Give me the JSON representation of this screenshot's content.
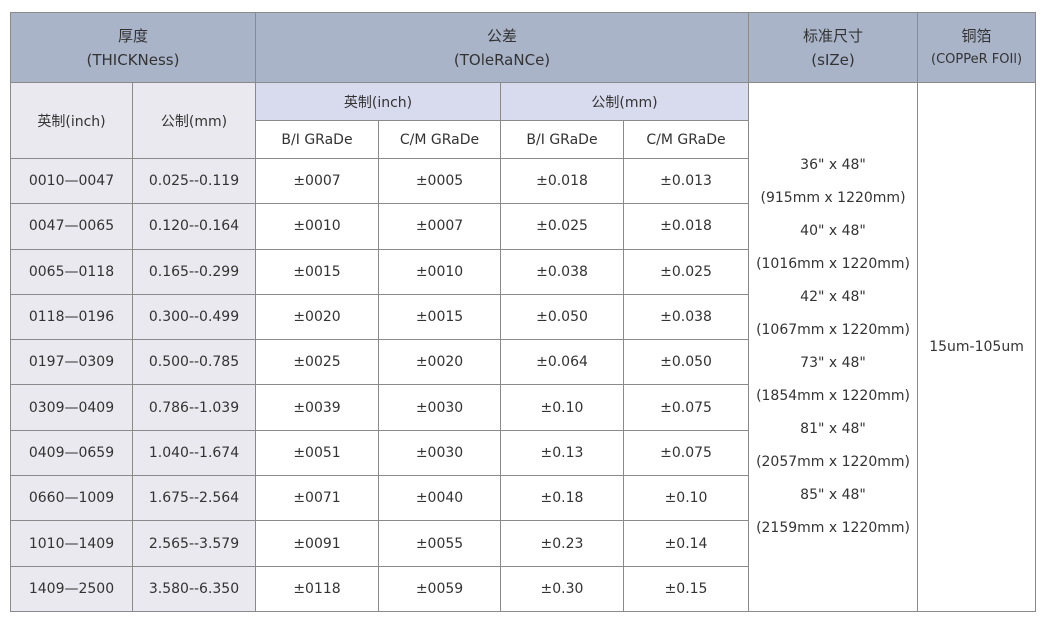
{
  "header": {
    "thickness": "厚度",
    "thickness_en": "(THICKNess)",
    "tolerance": "公差",
    "tolerance_en": "(TOleRaNCe)",
    "size": "标准尺寸",
    "size_en": "(sIZe)",
    "foil": "铜箔",
    "foil_en": "(COPPeR FOIl)"
  },
  "subheader": {
    "inch": "英制(inch)",
    "mm": "公制(mm)",
    "tol_inch": "英制(inch)",
    "tol_mm": "公制(mm)",
    "grades": [
      "B/I GRaDe",
      "C/M GRaDe",
      "B/I GRaDe",
      "C/M GRaDe"
    ]
  },
  "rows": [
    [
      "0010—0047",
      "0.025--0.119",
      "±0007",
      "±0005",
      "±0.018",
      "±0.013"
    ],
    [
      "0047—0065",
      "0.120--0.164",
      "±0010",
      "±0007",
      "±0.025",
      "±0.018"
    ],
    [
      "0065—0118",
      "0.165--0.299",
      "±0015",
      "±0010",
      "±0.038",
      "±0.025"
    ],
    [
      "0118—0196",
      "0.300--0.499",
      "±0020",
      "±0015",
      "±0.050",
      "±0.038"
    ],
    [
      "0197—0309",
      "0.500--0.785",
      "±0025",
      "±0020",
      "±0.064",
      "±0.050"
    ],
    [
      "0309—0409",
      "0.786--1.039",
      "±0039",
      "±0030",
      "±0.10",
      "±0.075"
    ],
    [
      "0409—0659",
      "1.040--1.674",
      "±0051",
      "±0030",
      "±0.13",
      "±0.075"
    ],
    [
      "0660—1009",
      "1.675--2.564",
      "±0071",
      "±0040",
      "±0.18",
      "±0.10"
    ],
    [
      "1010—1409",
      "2.565--3.579",
      "±0091",
      "±0055",
      "±0.23",
      "±0.14"
    ],
    [
      "1409—2500",
      "3.580--6.350",
      "±0118",
      "±0059",
      "±0.30",
      "±0.15"
    ]
  ],
  "sizes": [
    "36\" x 48\"",
    "(915mm x 1220mm)",
    "40\" x 48\"",
    "(1016mm x 1220mm)",
    "42\" x 48\"",
    "(1067mm x 1220mm)",
    "73\" x 48\"",
    "(1854mm x 1220mm)",
    "81\" x 48\"",
    "(2057mm x 1220mm)",
    "85\" x 48\"",
    "(2159mm x 1220mm)"
  ],
  "foil_value": "15um-105um"
}
